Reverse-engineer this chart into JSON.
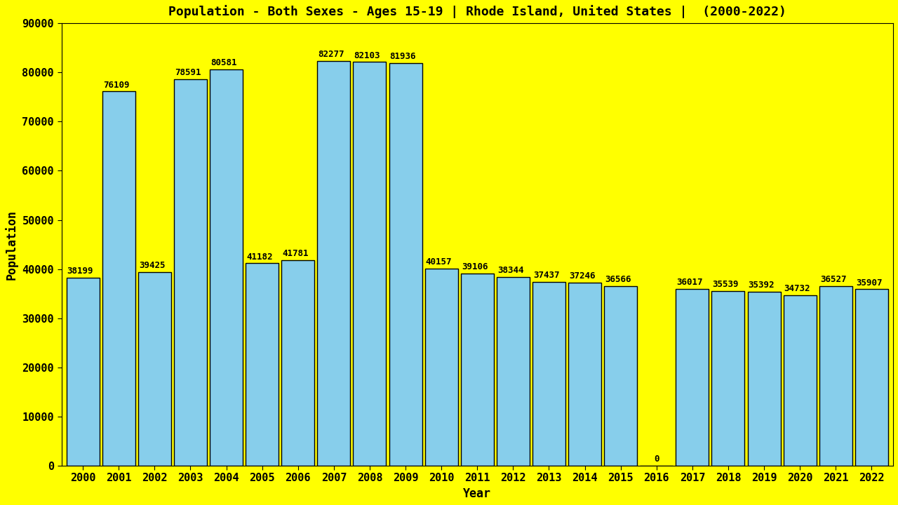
{
  "title": "Population - Both Sexes - Ages 15-19 | Rhode Island, United States |  (2000-2022)",
  "xlabel": "Year",
  "ylabel": "Population",
  "background_color": "#FFFF00",
  "bar_color": "#87CEEB",
  "bar_edge_color": "#000000",
  "years": [
    2000,
    2001,
    2002,
    2003,
    2004,
    2005,
    2006,
    2007,
    2008,
    2009,
    2010,
    2011,
    2012,
    2013,
    2014,
    2015,
    2016,
    2017,
    2018,
    2019,
    2020,
    2021,
    2022
  ],
  "values": [
    38199,
    76109,
    39425,
    78591,
    80581,
    41182,
    41781,
    82277,
    82103,
    81936,
    40157,
    39106,
    38344,
    37437,
    37246,
    36566,
    0,
    36017,
    35539,
    35392,
    34732,
    36527,
    35907
  ],
  "ylim": [
    0,
    90000
  ],
  "yticks": [
    0,
    10000,
    20000,
    30000,
    40000,
    50000,
    60000,
    70000,
    80000,
    90000
  ],
  "title_fontsize": 13,
  "label_fontsize": 12,
  "tick_fontsize": 11,
  "annotation_fontsize": 9,
  "bar_width": 0.92
}
